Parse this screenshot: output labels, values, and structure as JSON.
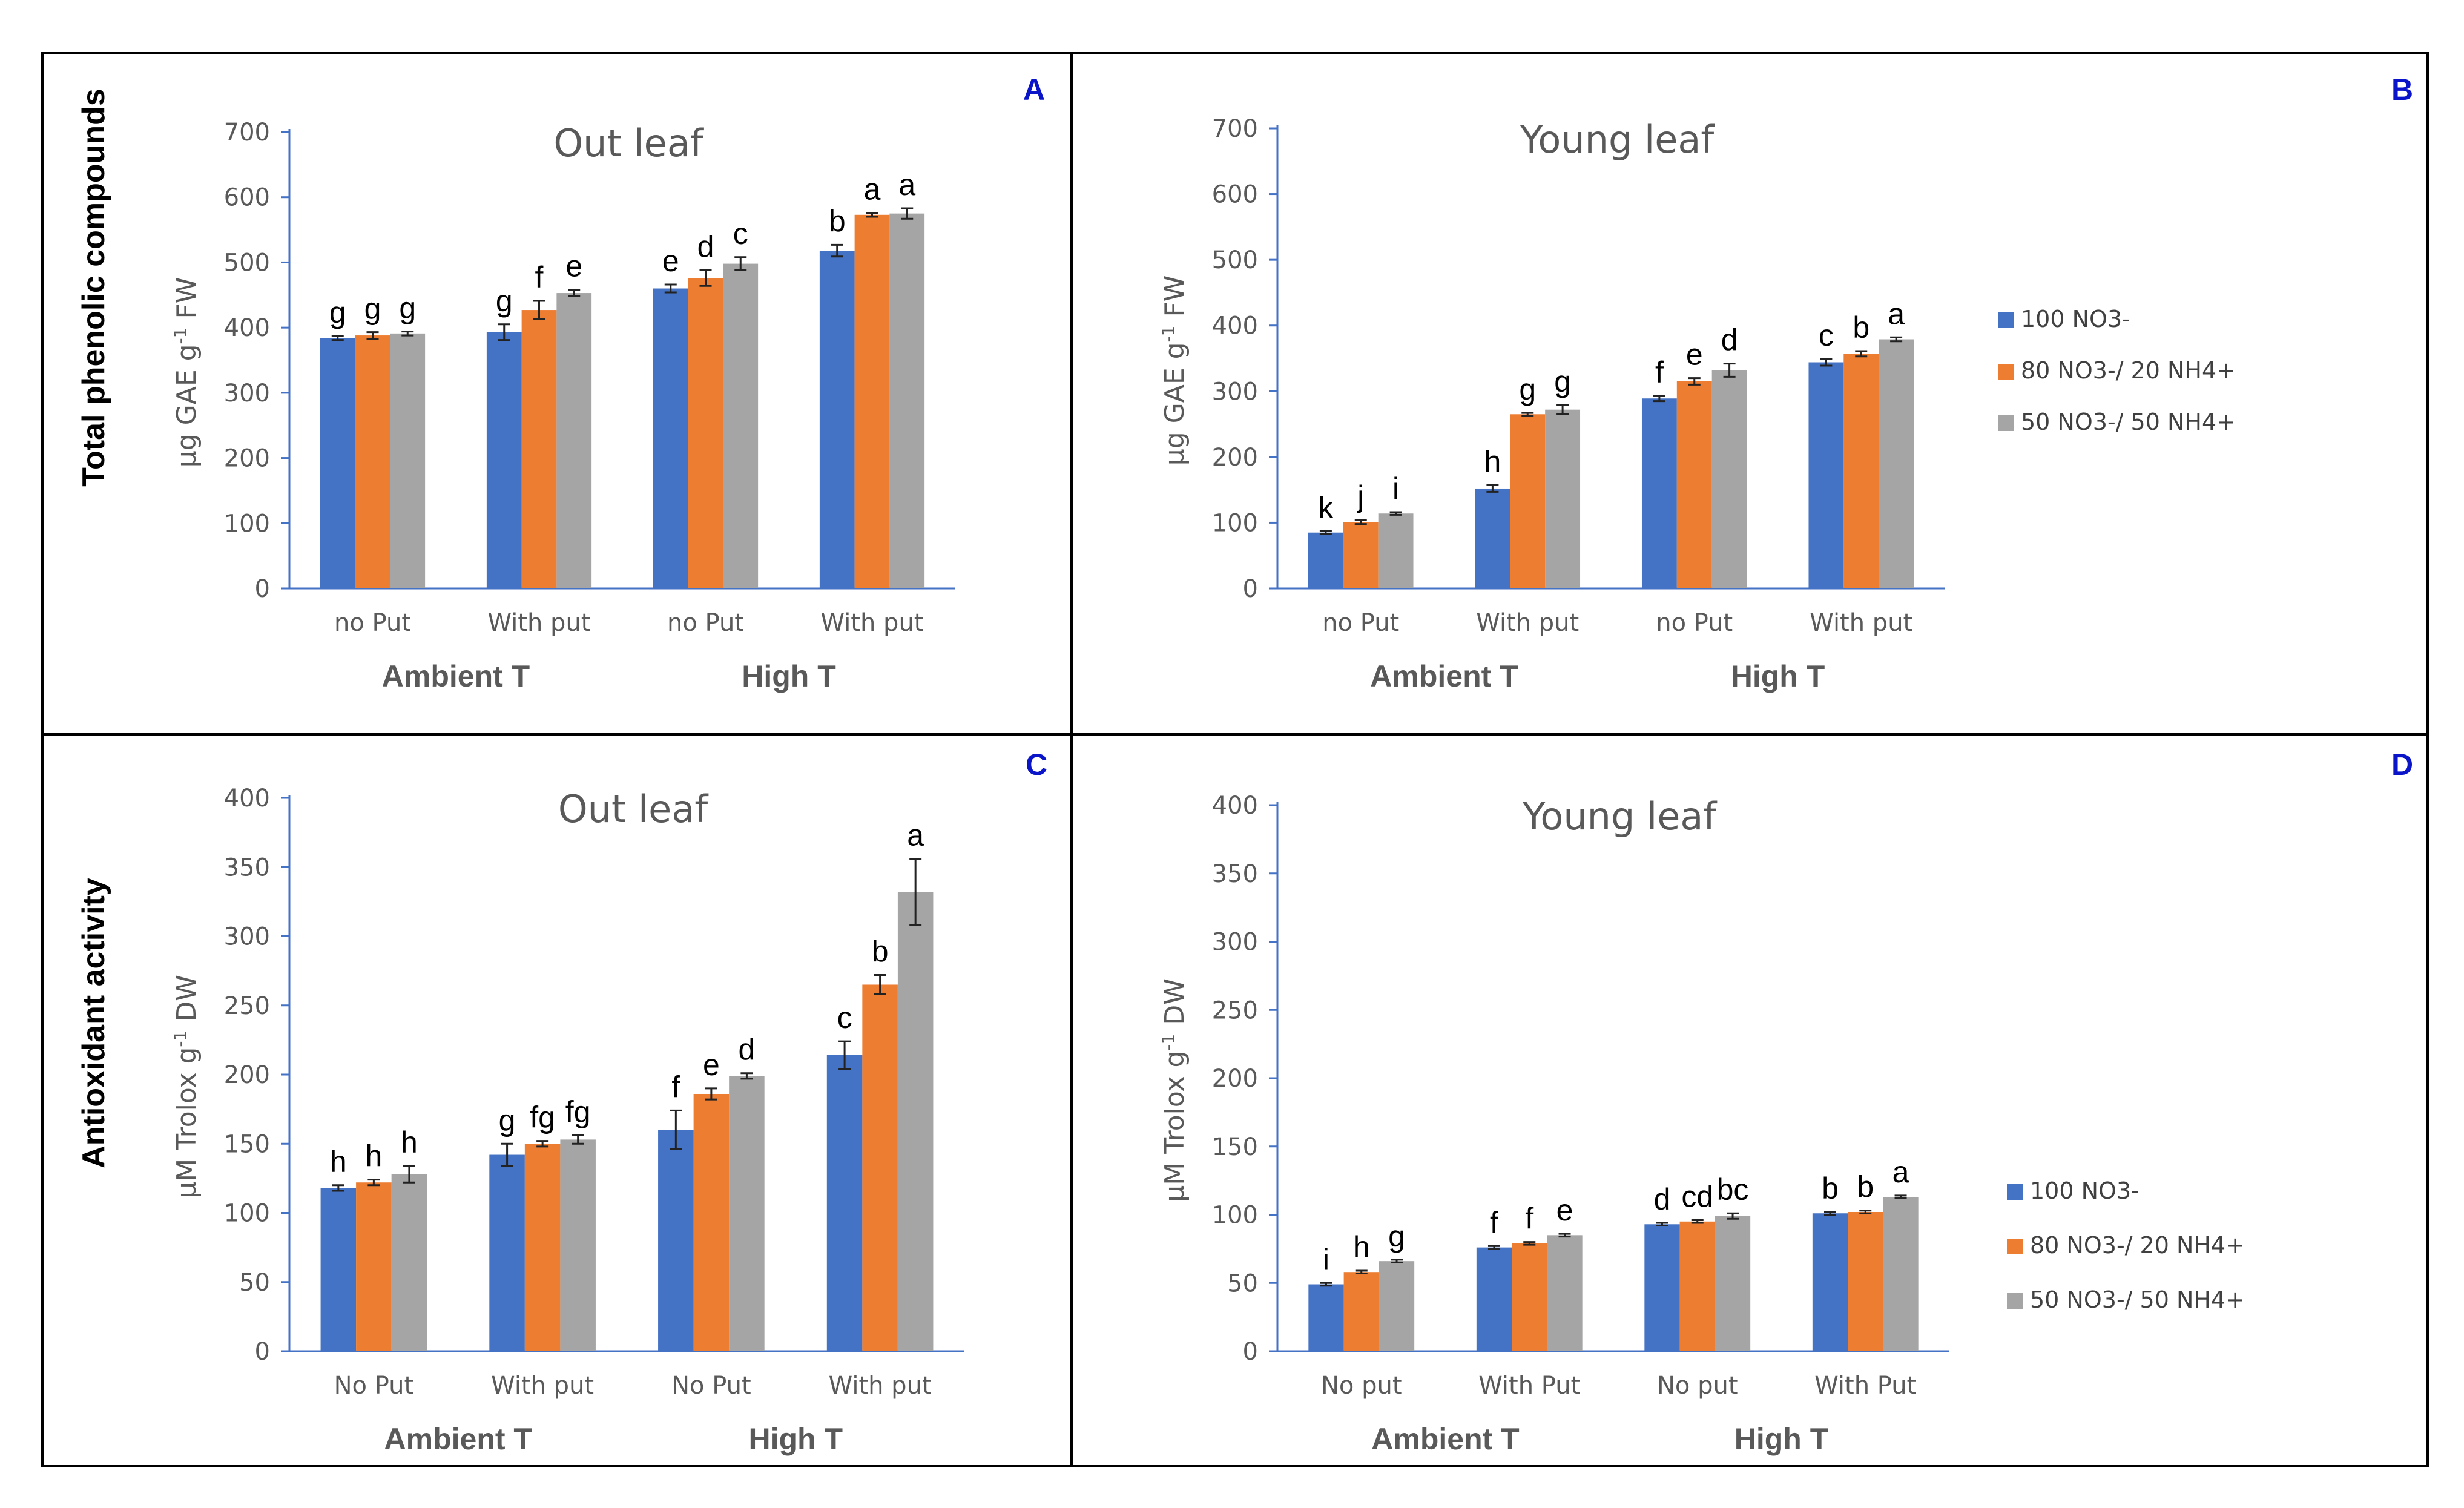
{
  "figure": {
    "row_labels": [
      "Total phenolic compounds",
      "Antioxidant activity"
    ],
    "colors": {
      "100 NO3-": "#4472c4",
      "80 NO3-/ 20 NH4+": "#ed7d31",
      "50 NO3-/ 50 NH4+": "#a5a5a5",
      "frame": "#000000",
      "axis": "#4472c4",
      "letter": "#0a14c8"
    }
  },
  "chart_data": [
    {
      "panel": "A",
      "type": "bar",
      "title": "Out leaf",
      "ylabel_main": "µg GAE g",
      "ylabel_sup": "-1",
      "ylabel_tail": " FW",
      "ylim": [
        0,
        700
      ],
      "yticks": [
        0,
        100,
        200,
        300,
        400,
        500,
        600,
        700
      ],
      "categories": [
        "no Put",
        "With put",
        "no Put",
        "With put"
      ],
      "groups": [
        "Ambient T",
        "High T"
      ],
      "series": [
        {
          "name": "100 NO3-",
          "values": [
            384,
            393,
            460,
            518
          ],
          "errors": [
            3,
            12,
            6,
            9
          ],
          "letters": [
            "g",
            "g",
            "e",
            "b"
          ]
        },
        {
          "name": "80 NO3-/ 20 NH4+",
          "values": [
            388,
            427,
            476,
            573
          ],
          "errors": [
            5,
            14,
            12,
            3
          ],
          "letters": [
            "g",
            "f",
            "d",
            "a"
          ]
        },
        {
          "name": "50 NO3-/ 50 NH4+",
          "values": [
            391,
            453,
            498,
            575
          ],
          "errors": [
            3,
            5,
            10,
            8
          ],
          "letters": [
            "g",
            "e",
            "c",
            "a"
          ]
        }
      ]
    },
    {
      "panel": "B",
      "type": "bar",
      "title": "Young leaf",
      "ylabel_main": "µg GAE g",
      "ylabel_sup": "-1",
      "ylabel_tail": " FW",
      "ylim": [
        0,
        700
      ],
      "yticks": [
        0,
        100,
        200,
        300,
        400,
        500,
        600,
        700
      ],
      "categories": [
        "no Put",
        "With put",
        "no Put",
        "With put"
      ],
      "groups": [
        "Ambient T",
        "High T"
      ],
      "legend": [
        "100 NO3-",
        "80 NO3-/ 20 NH4+",
        "50 NO3-/ 50 NH4+"
      ],
      "series": [
        {
          "name": "100 NO3-",
          "values": [
            85,
            152,
            289,
            344
          ],
          "errors": [
            2,
            5,
            4,
            5
          ],
          "letters": [
            "k",
            "h",
            "f",
            "c"
          ]
        },
        {
          "name": "80 NO3-/ 20 NH4+",
          "values": [
            101,
            265,
            315,
            357
          ],
          "errors": [
            3,
            2,
            5,
            4
          ],
          "letters": [
            "j",
            "g",
            "e",
            "b"
          ]
        },
        {
          "name": "50 NO3-/ 50 NH4+",
          "values": [
            114,
            272,
            332,
            379
          ],
          "errors": [
            2,
            7,
            10,
            3
          ],
          "letters": [
            "i",
            "g",
            "d",
            "a"
          ]
        }
      ]
    },
    {
      "panel": "C",
      "type": "bar",
      "title": "Out leaf",
      "ylabel_main": "µM Trolox g",
      "ylabel_sup": "-1",
      "ylabel_tail": " DW",
      "ylim": [
        0,
        400
      ],
      "yticks": [
        0,
        50,
        100,
        150,
        200,
        250,
        300,
        350,
        400
      ],
      "categories": [
        "No Put",
        "With put",
        "No Put",
        "With put"
      ],
      "groups": [
        "Ambient T",
        "High T"
      ],
      "series": [
        {
          "name": "100 NO3-",
          "values": [
            118,
            142,
            160,
            214
          ],
          "errors": [
            2,
            8,
            14,
            10
          ],
          "letters": [
            "h",
            "g",
            "f",
            "c"
          ]
        },
        {
          "name": "80 NO3-/ 20 NH4+",
          "values": [
            122,
            150,
            186,
            265
          ],
          "errors": [
            2,
            2,
            4,
            7
          ],
          "letters": [
            "h",
            "fg",
            "e",
            "b"
          ]
        },
        {
          "name": "50 NO3-/ 50 NH4+",
          "values": [
            128,
            153,
            199,
            332
          ],
          "errors": [
            6,
            3,
            2,
            24
          ],
          "letters": [
            "h",
            "fg",
            "d",
            "a"
          ]
        }
      ]
    },
    {
      "panel": "D",
      "type": "bar",
      "title": "Young leaf",
      "ylabel_main": "µM Trolox g",
      "ylabel_sup": "-1",
      "ylabel_tail": " DW",
      "ylim": [
        0,
        400
      ],
      "yticks": [
        0,
        50,
        100,
        150,
        200,
        250,
        300,
        350,
        400
      ],
      "categories": [
        "No put",
        "With Put",
        "No put",
        "With Put"
      ],
      "groups": [
        "Ambient T",
        "High T"
      ],
      "legend": [
        "100 NO3-",
        "80 NO3-/ 20 NH4+",
        "50 NO3-/ 50 NH4+"
      ],
      "series": [
        {
          "name": "100 NO3-",
          "values": [
            49,
            76,
            93,
            101
          ],
          "errors": [
            1,
            1,
            1,
            1
          ],
          "letters": [
            "i",
            "f",
            "d",
            "b"
          ]
        },
        {
          "name": "80 NO3-/ 20 NH4+",
          "values": [
            58,
            79,
            95,
            102
          ],
          "errors": [
            1,
            1,
            1,
            1
          ],
          "letters": [
            "h",
            "f",
            "cd",
            "b"
          ]
        },
        {
          "name": "50 NO3-/ 50 NH4+",
          "values": [
            66,
            85,
            99,
            113
          ],
          "errors": [
            1,
            1,
            2,
            1
          ],
          "letters": [
            "g",
            "e",
            "bc",
            "a"
          ]
        }
      ]
    }
  ]
}
